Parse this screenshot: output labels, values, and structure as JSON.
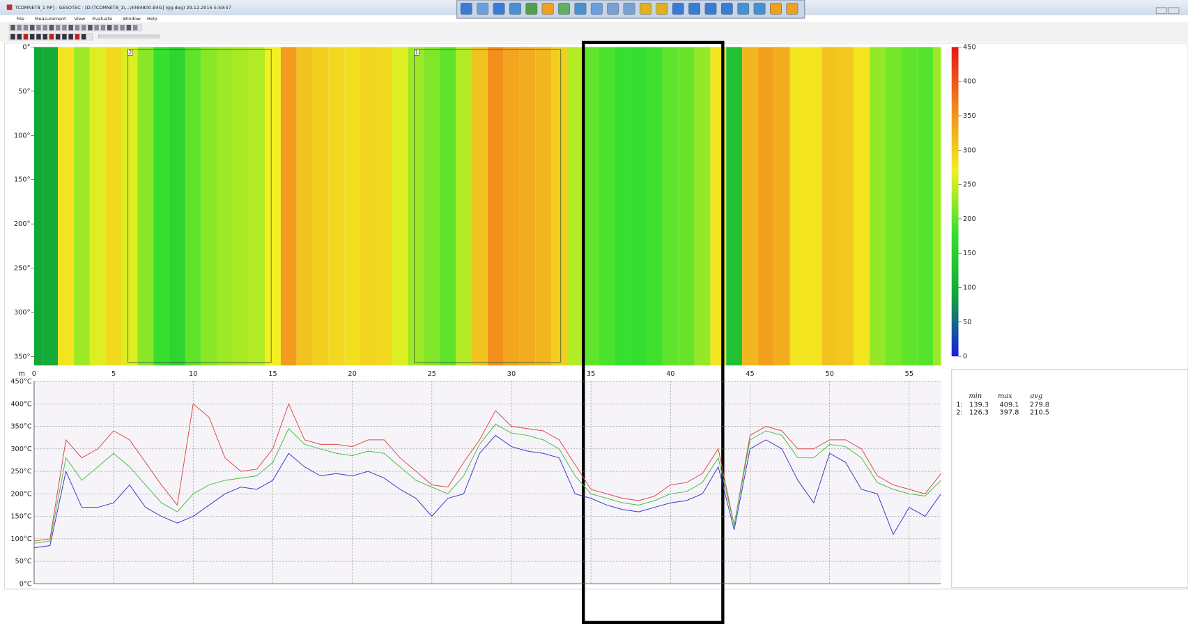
{
  "window": {
    "title": "TCDMNET8_1 RP] - GESOTEC - [D:\\TCDMNET8_1\\...\\4484800.B4G] (gg-deg) 29.12.2016 5:59:57",
    "menu": [
      "File",
      "Measurement",
      "View",
      "Evaluate",
      "Window",
      "Help"
    ]
  },
  "x_axis": {
    "unit": "m",
    "xlim": [
      0,
      57
    ],
    "xticks": [
      0,
      5,
      10,
      15,
      20,
      25,
      30,
      35,
      40,
      45,
      50,
      55
    ]
  },
  "heatmap": {
    "ylim": [
      0,
      360
    ],
    "yticks": [
      {
        "value": 0,
        "label": "0°"
      },
      {
        "value": 50,
        "label": "50°"
      },
      {
        "value": 100,
        "label": "100°"
      },
      {
        "value": 150,
        "label": "150°"
      },
      {
        "value": 200,
        "label": "200°"
      },
      {
        "value": 250,
        "label": "250°"
      },
      {
        "value": 300,
        "label": "300°"
      },
      {
        "value": 350,
        "label": "350°"
      }
    ],
    "regions": [
      {
        "label": "2",
        "x": [
          5.9,
          14.9
        ]
      },
      {
        "label": "1",
        "x": [
          23.9,
          33.1
        ]
      }
    ],
    "colorbar": {
      "lim": [
        0,
        450
      ],
      "ticks": [
        0,
        50,
        100,
        150,
        200,
        250,
        300,
        350,
        400,
        450
      ],
      "colors": [
        "#1a1ae6",
        "#12a838",
        "#36e02e",
        "#f2f020",
        "#f28a1e",
        "#e81414"
      ]
    }
  },
  "line_chart": {
    "ylim": [
      0,
      450
    ],
    "yticks": [
      {
        "value": 0,
        "label": "0°C"
      },
      {
        "value": 50,
        "label": "50°C"
      },
      {
        "value": 100,
        "label": "100°C"
      },
      {
        "value": 150,
        "label": "150°C"
      },
      {
        "value": 200,
        "label": "200°C"
      },
      {
        "value": 250,
        "label": "250°C"
      },
      {
        "value": 300,
        "label": "300°C"
      },
      {
        "value": 350,
        "label": "350°C"
      },
      {
        "value": 400,
        "label": "400°C"
      },
      {
        "value": 450,
        "label": "450°C"
      }
    ],
    "x": [
      0,
      1,
      2,
      3,
      4,
      5,
      6,
      7,
      8,
      9,
      10,
      11,
      12,
      13,
      14,
      15,
      16,
      17,
      18,
      19,
      20,
      21,
      22,
      23,
      24,
      25,
      26,
      27,
      28,
      29,
      30,
      31,
      32,
      33,
      34,
      35,
      36,
      37,
      38,
      39,
      40,
      41,
      42,
      43,
      44,
      45,
      46,
      47,
      48,
      49,
      50,
      51,
      52,
      53,
      54,
      55,
      56,
      57
    ],
    "series": [
      {
        "color": "#d84848",
        "values": [
          95,
          100,
          320,
          280,
          300,
          340,
          320,
          270,
          220,
          175,
          400,
          370,
          280,
          250,
          255,
          300,
          400,
          320,
          310,
          310,
          305,
          320,
          320,
          280,
          250,
          220,
          215,
          270,
          320,
          385,
          350,
          345,
          340,
          320,
          265,
          210,
          200,
          190,
          185,
          195,
          220,
          225,
          245,
          300,
          130,
          330,
          350,
          340,
          300,
          300,
          320,
          320,
          300,
          240,
          220,
          210,
          200,
          245
        ]
      },
      {
        "color": "#44c044",
        "values": [
          90,
          95,
          280,
          230,
          260,
          290,
          260,
          220,
          180,
          160,
          200,
          220,
          230,
          235,
          240,
          270,
          345,
          310,
          300,
          290,
          285,
          295,
          290,
          260,
          230,
          215,
          200,
          240,
          310,
          355,
          335,
          330,
          320,
          300,
          240,
          200,
          190,
          180,
          175,
          185,
          200,
          205,
          225,
          280,
          130,
          320,
          340,
          330,
          280,
          280,
          310,
          305,
          280,
          225,
          210,
          200,
          195,
          230
        ]
      },
      {
        "color": "#3838c8",
        "values": [
          80,
          85,
          250,
          170,
          170,
          180,
          220,
          170,
          150,
          135,
          150,
          175,
          200,
          215,
          210,
          230,
          290,
          260,
          240,
          245,
          240,
          250,
          235,
          210,
          190,
          150,
          190,
          200,
          290,
          330,
          305,
          295,
          290,
          280,
          200,
          190,
          175,
          165,
          160,
          170,
          180,
          185,
          200,
          260,
          120,
          300,
          320,
          300,
          230,
          180,
          290,
          270,
          210,
          200,
          110,
          170,
          150,
          200
        ]
      }
    ]
  },
  "stats": {
    "headers": [
      "min",
      "max",
      "avg"
    ],
    "rows": [
      [
        "1:",
        139.3,
        409.1,
        279.8
      ],
      [
        "2:",
        126.3,
        397.8,
        210.5
      ]
    ]
  }
}
